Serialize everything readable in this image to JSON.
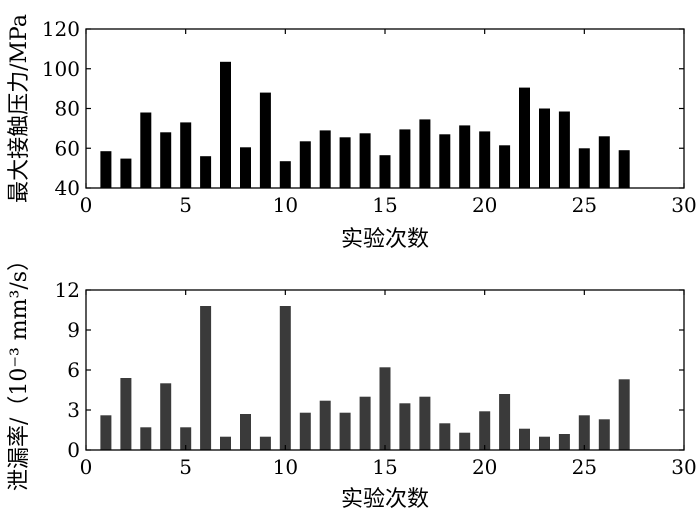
{
  "chart_data": [
    {
      "type": "bar",
      "xlabel": "实验次数",
      "ylabel": "最大接触压力/MPa",
      "xlim": [
        0,
        30
      ],
      "ylim": [
        40,
        120
      ],
      "xticks": [
        0,
        5,
        10,
        15,
        20,
        25,
        30
      ],
      "yticks": [
        40,
        60,
        80,
        100,
        120
      ],
      "bar_color": "#000000",
      "grid": false,
      "x": [
        1,
        2,
        3,
        4,
        5,
        6,
        7,
        8,
        9,
        10,
        11,
        12,
        13,
        14,
        15,
        16,
        17,
        18,
        19,
        20,
        21,
        22,
        23,
        24,
        25,
        26,
        27
      ],
      "values": [
        58.5,
        54.8,
        78,
        68,
        73,
        56,
        103.5,
        60.5,
        88,
        53.5,
        63.5,
        69,
        65.5,
        67.5,
        56.5,
        69.5,
        74.5,
        67,
        71.5,
        68.5,
        61.5,
        90.5,
        80,
        78.5,
        60,
        66,
        59
      ]
    },
    {
      "type": "bar",
      "xlabel": "实验次数",
      "ylabel": "泄漏率/（10⁻³ mm³/s）",
      "xlim": [
        0,
        30
      ],
      "ylim": [
        0,
        12
      ],
      "xticks": [
        0,
        5,
        10,
        15,
        20,
        25,
        30
      ],
      "yticks": [
        0,
        3,
        6,
        9,
        12
      ],
      "bar_color": "#3a3a3a",
      "grid": false,
      "x": [
        1,
        2,
        3,
        4,
        5,
        6,
        7,
        8,
        9,
        10,
        11,
        12,
        13,
        14,
        15,
        16,
        17,
        18,
        19,
        20,
        21,
        22,
        23,
        24,
        25,
        26,
        27
      ],
      "values": [
        2.6,
        5.4,
        1.7,
        5.0,
        1.7,
        10.8,
        1.0,
        2.7,
        1.0,
        10.8,
        2.8,
        3.7,
        2.8,
        4.0,
        6.2,
        3.5,
        4.0,
        2.0,
        1.3,
        2.9,
        4.2,
        1.6,
        1.0,
        1.2,
        2.6,
        2.3,
        5.3
      ]
    }
  ]
}
